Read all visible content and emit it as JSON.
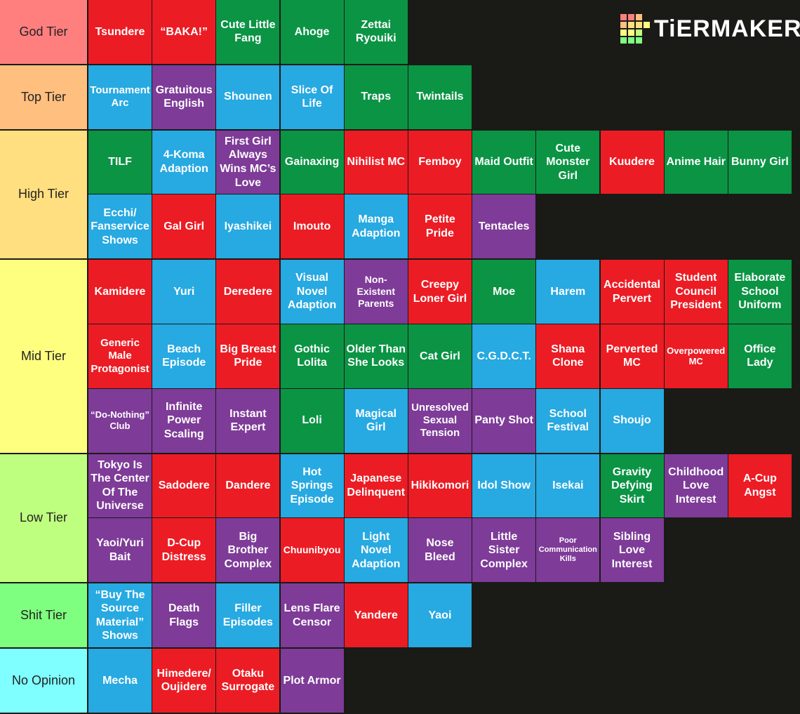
{
  "logo": "TiERMAKER",
  "palette": {
    "red": "#ec1c24",
    "green": "#0b9444",
    "blue": "#27a9e1",
    "purple": "#7e3b98"
  },
  "tiers": [
    {
      "label": "God Tier",
      "color": "#ff7f7f",
      "items": [
        {
          "text": "Tsundere",
          "color": "red"
        },
        {
          "text": "“BAKA!”",
          "color": "red"
        },
        {
          "text": "Cute Little Fang",
          "color": "green"
        },
        {
          "text": "Ahoge",
          "color": "green"
        },
        {
          "text": "Zettai Ryouiki",
          "color": "green"
        }
      ]
    },
    {
      "label": "Top Tier",
      "color": "#ffbf7f",
      "items": [
        {
          "text": "Tournament Arc",
          "color": "blue"
        },
        {
          "text": "Gratuitous English",
          "color": "purple"
        },
        {
          "text": "Shounen",
          "color": "blue"
        },
        {
          "text": "Slice Of Life",
          "color": "blue"
        },
        {
          "text": "Traps",
          "color": "green"
        },
        {
          "text": "Twintails",
          "color": "green"
        }
      ]
    },
    {
      "label": "High Tier",
      "color": "#ffdf7f",
      "items": [
        {
          "text": "TILF",
          "color": "green"
        },
        {
          "text": "4-Koma Adaption",
          "color": "blue"
        },
        {
          "text": "First Girl Always Wins MC’s Love",
          "color": "purple"
        },
        {
          "text": "Gainaxing",
          "color": "green"
        },
        {
          "text": "Nihilist MC",
          "color": "red"
        },
        {
          "text": "Femboy",
          "color": "red"
        },
        {
          "text": "Maid Outfit",
          "color": "green"
        },
        {
          "text": "Cute Monster Girl",
          "color": "green"
        },
        {
          "text": "Kuudere",
          "color": "red"
        },
        {
          "text": "Anime Hair",
          "color": "green"
        },
        {
          "text": "Bunny Girl",
          "color": "green"
        },
        {
          "text": "Ecchi/ Fanservice Shows",
          "color": "blue"
        },
        {
          "text": "Gal Girl",
          "color": "red"
        },
        {
          "text": "Iyashikei",
          "color": "blue"
        },
        {
          "text": "Imouto",
          "color": "red"
        },
        {
          "text": "Manga Adaption",
          "color": "blue"
        },
        {
          "text": "Petite Pride",
          "color": "red"
        },
        {
          "text": "Tentacles",
          "color": "purple"
        }
      ]
    },
    {
      "label": "Mid Tier",
      "color": "#ffff7f",
      "items": [
        {
          "text": "Kamidere",
          "color": "red"
        },
        {
          "text": "Yuri",
          "color": "blue"
        },
        {
          "text": "Deredere",
          "color": "red"
        },
        {
          "text": "Visual Novel Adaption",
          "color": "blue"
        },
        {
          "text": "Non-Existent Parents",
          "color": "purple"
        },
        {
          "text": "Creepy Loner Girl",
          "color": "red"
        },
        {
          "text": "Moe",
          "color": "green"
        },
        {
          "text": "Harem",
          "color": "blue"
        },
        {
          "text": "Accidental Pervert",
          "color": "red"
        },
        {
          "text": "Student Council President",
          "color": "red"
        },
        {
          "text": "Elaborate School Uniform",
          "color": "green"
        },
        {
          "text": "Generic Male Protagonist",
          "color": "red"
        },
        {
          "text": "Beach Episode",
          "color": "blue"
        },
        {
          "text": "Big Breast Pride",
          "color": "red"
        },
        {
          "text": "Gothic Lolita",
          "color": "green"
        },
        {
          "text": "Older Than She Looks",
          "color": "green"
        },
        {
          "text": "Cat Girl",
          "color": "green"
        },
        {
          "text": "C.G.D.C.T.",
          "color": "blue"
        },
        {
          "text": "Shana Clone",
          "color": "red"
        },
        {
          "text": "Perverted MC",
          "color": "red"
        },
        {
          "text": "Overpowered MC",
          "color": "red"
        },
        {
          "text": "Office Lady",
          "color": "green"
        },
        {
          "text": "“Do-Nothing” Club",
          "color": "purple"
        },
        {
          "text": "Infinite Power Scaling",
          "color": "purple"
        },
        {
          "text": "Instant Expert",
          "color": "purple"
        },
        {
          "text": "Loli",
          "color": "green"
        },
        {
          "text": "Magical Girl",
          "color": "blue"
        },
        {
          "text": "Unresolved Sexual Tension",
          "color": "purple"
        },
        {
          "text": "Panty Shot",
          "color": "purple"
        },
        {
          "text": "School Festival",
          "color": "blue"
        },
        {
          "text": "Shoujo",
          "color": "blue"
        }
      ]
    },
    {
      "label": "Low Tier",
      "color": "#bfff7f",
      "items": [
        {
          "text": "Tokyo Is The Center Of The Universe",
          "color": "purple"
        },
        {
          "text": "Sadodere",
          "color": "red"
        },
        {
          "text": "Dandere",
          "color": "red"
        },
        {
          "text": "Hot Springs Episode",
          "color": "blue"
        },
        {
          "text": "Japanese Delinquent",
          "color": "red"
        },
        {
          "text": "Hikikomori",
          "color": "red"
        },
        {
          "text": "Idol Show",
          "color": "blue"
        },
        {
          "text": "Isekai",
          "color": "blue"
        },
        {
          "text": "Gravity Defying Skirt",
          "color": "green"
        },
        {
          "text": "Childhood Love Interest",
          "color": "purple"
        },
        {
          "text": "A-Cup Angst",
          "color": "red"
        },
        {
          "text": "Yaoi/Yuri Bait",
          "color": "purple"
        },
        {
          "text": "D-Cup Distress",
          "color": "red"
        },
        {
          "text": "Big Brother Complex",
          "color": "purple"
        },
        {
          "text": "Chuunibyou",
          "color": "red"
        },
        {
          "text": "Light Novel Adaption",
          "color": "blue"
        },
        {
          "text": "Nose Bleed",
          "color": "purple"
        },
        {
          "text": "Little Sister Complex",
          "color": "purple"
        },
        {
          "text": "Poor Communication Kills",
          "color": "purple"
        },
        {
          "text": "Sibling Love Interest",
          "color": "purple"
        }
      ]
    },
    {
      "label": "Shit Tier",
      "color": "#7fff7f",
      "items": [
        {
          "text": "“Buy The Source Material” Shows",
          "color": "blue"
        },
        {
          "text": "Death Flags",
          "color": "purple"
        },
        {
          "text": "Filler Episodes",
          "color": "blue"
        },
        {
          "text": "Lens Flare Censor",
          "color": "purple"
        },
        {
          "text": "Yandere",
          "color": "red"
        },
        {
          "text": "Yaoi",
          "color": "blue"
        }
      ]
    },
    {
      "label": "No Opinion",
      "color": "#7fffff",
      "items": [
        {
          "text": "Mecha",
          "color": "blue"
        },
        {
          "text": "Himedere/ Oujidere",
          "color": "red"
        },
        {
          "text": "Otaku Surrogate",
          "color": "red"
        },
        {
          "text": "Plot Armor",
          "color": "purple"
        }
      ]
    }
  ]
}
